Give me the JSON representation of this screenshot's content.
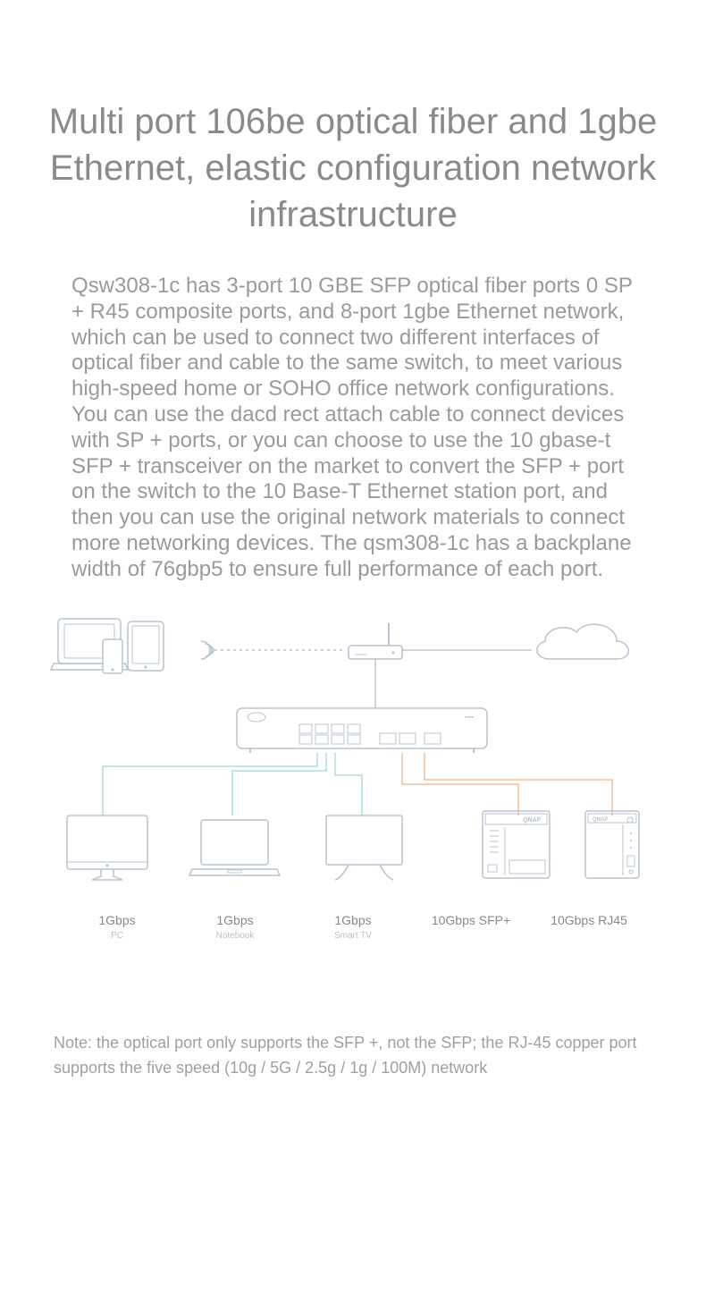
{
  "title": "Multi port 106be optical fiber and 1gbe Ethernet, elastic configuration network infrastructure",
  "body": "Qsw308-1c has 3-port 10 GBE SFP optical fiber ports 0 SP + R45 composite ports, and 8-port 1gbe Ethernet network, which can be used to connect two different interfaces of optical fiber and cable to the same switch, to meet various high-speed home or SOHO office network configurations. You can use the dacd rect attach cable to connect devices with SP + ports, or you can choose to use the 10 gbase-t SFP + transceiver on the market to convert the SFP + port on the switch to the 10 Base-T Ethernet station port, and then you can use the original network materials to connect more networking devices. The qsm308-1c has a backplane width of 76gbp5 to ensure full performance of each port.",
  "note": "Note: the optical port only supports the SFP +, not the SFP; the RJ-45 copper port supports the five speed (10g / 5G / 2.5g / 1g / 100M) network",
  "diagram": {
    "colors": {
      "outline": "#b8c4d0",
      "teal_line": "#7fcfcf",
      "orange_line": "#e8a060",
      "gray_line": "#aaaaaa",
      "fill": "#ffffff"
    },
    "stroke_width": 1.5,
    "devices": [
      {
        "speed": "1Gbps",
        "type": "PC"
      },
      {
        "speed": "1Gbps",
        "type": "Notebook"
      },
      {
        "speed": "1Gbps",
        "type": "Smart TV"
      },
      {
        "speed": "10Gbps SFP+",
        "type": ""
      },
      {
        "speed": "10Gbps RJ45",
        "type": ""
      }
    ],
    "brand_label": "QNAP"
  }
}
